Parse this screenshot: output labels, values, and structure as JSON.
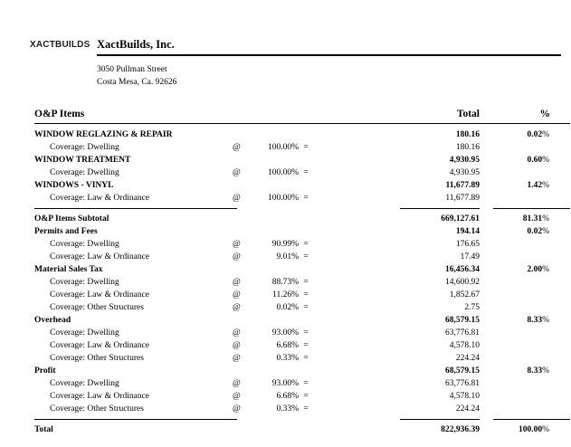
{
  "header": {
    "logo": "XACTBUILDS",
    "company_name": "XactBuilds, Inc.",
    "address_line1": "3050 Pullman Street",
    "address_line2": "Costa Mesa, Ca. 92626"
  },
  "table": {
    "columns": {
      "items": "O&P Items",
      "total": "Total",
      "percent": "%"
    },
    "symbols": {
      "at": "@",
      "eq": "="
    },
    "rows": [
      {
        "type": "item",
        "label": "WINDOW REGLAZING & REPAIR",
        "total": "180.16",
        "share": "0.02%"
      },
      {
        "type": "coverage",
        "label": "Coverage: Dwelling",
        "pct": "100.00%",
        "total": "180.16"
      },
      {
        "type": "item",
        "label": "WINDOW TREATMENT",
        "total": "4,930.95",
        "share": "0.60%"
      },
      {
        "type": "coverage",
        "label": "Coverage: Dwelling",
        "pct": "100.00%",
        "total": "4,930.95"
      },
      {
        "type": "item",
        "label": "WINDOWS - VINYL",
        "total": "11,677.89",
        "share": "1.42%"
      },
      {
        "type": "coverage",
        "label": "Coverage: Law & Ordinance",
        "pct": "100.00%",
        "total": "11,677.89"
      },
      {
        "type": "separator"
      },
      {
        "type": "item",
        "label": "O&P Items Subtotal",
        "total": "669,127.61",
        "share": "81.31%"
      },
      {
        "type": "item",
        "label": "Permits and Fees",
        "total": "194.14",
        "share": "0.02%"
      },
      {
        "type": "coverage",
        "label": "Coverage: Dwelling",
        "pct": "90.99%",
        "total": "176.65"
      },
      {
        "type": "coverage",
        "label": "Coverage: Law & Ordinance",
        "pct": "9.01%",
        "total": "17.49"
      },
      {
        "type": "item",
        "label": "Material Sales Tax",
        "total": "16,456.34",
        "share": "2.00%"
      },
      {
        "type": "coverage",
        "label": "Coverage: Dwelling",
        "pct": "88.73%",
        "total": "14,600.92"
      },
      {
        "type": "coverage",
        "label": "Coverage: Law & Ordinance",
        "pct": "11.26%",
        "total": "1,852.67"
      },
      {
        "type": "coverage",
        "label": "Coverage: Other Structures",
        "pct": "0.02%",
        "total": "2.75"
      },
      {
        "type": "item",
        "label": "Overhead",
        "total": "68,579.15",
        "share": "8.33%"
      },
      {
        "type": "coverage",
        "label": "Coverage: Dwelling",
        "pct": "93.00%",
        "total": "63,776.81"
      },
      {
        "type": "coverage",
        "label": "Coverage: Law & Ordinance",
        "pct": "6.68%",
        "total": "4,578.10"
      },
      {
        "type": "coverage",
        "label": "Coverage: Other Structures",
        "pct": "0.33%",
        "total": "224.24"
      },
      {
        "type": "item",
        "label": "Profit",
        "total": "68,579.15",
        "share": "8.33%"
      },
      {
        "type": "coverage",
        "label": "Coverage: Dwelling",
        "pct": "93.00%",
        "total": "63,776.81"
      },
      {
        "type": "coverage",
        "label": "Coverage: Law & Ordinance",
        "pct": "6.68%",
        "total": "4,578.10"
      },
      {
        "type": "coverage",
        "label": "Coverage: Other Structures",
        "pct": "0.33%",
        "total": "224.24"
      },
      {
        "type": "separator"
      },
      {
        "type": "total",
        "label": "Total",
        "total": "822,936.39",
        "share": "100.00%"
      }
    ]
  }
}
